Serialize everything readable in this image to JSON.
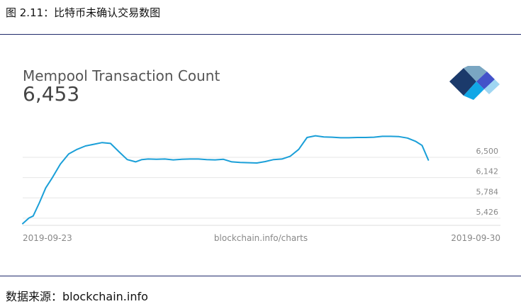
{
  "figure": {
    "caption": "图 2.11：比特币未确认交易数图",
    "source": "数据来源：blockchain.info"
  },
  "chart_data": {
    "type": "line",
    "title": "Mempool Transaction Count",
    "current_value": "6,453",
    "y_ticks": [
      5426,
      5784,
      6142,
      6500
    ],
    "y_tick_labels": [
      "5,426",
      "5,784",
      "6,142",
      "6,500"
    ],
    "ylim": [
      5300,
      7400
    ],
    "x_labels": [
      "2019-09-23",
      "blockchain.info/charts",
      "2019-09-30"
    ],
    "xlim": [
      0,
      100
    ],
    "grid": true,
    "line_color": "#1a9fd8",
    "series": [
      {
        "x": [
          0,
          1.5,
          2.5,
          4,
          5.5,
          7,
          9,
          11,
          13,
          15,
          17,
          19,
          21,
          23,
          25,
          27,
          28.5,
          30,
          32,
          34,
          36,
          38,
          40,
          42,
          44,
          46,
          48,
          50,
          52,
          54,
          56,
          58,
          60,
          62,
          64,
          66,
          68,
          70,
          72,
          74,
          76,
          78,
          80,
          82,
          84,
          86,
          88,
          90,
          92,
          94,
          95.5,
          97
        ],
        "values": [
          5330,
          5430,
          5465,
          5700,
          5960,
          6130,
          6380,
          6560,
          6640,
          6700,
          6730,
          6760,
          6745,
          6600,
          6460,
          6420,
          6460,
          6470,
          6465,
          6470,
          6455,
          6465,
          6470,
          6470,
          6460,
          6455,
          6465,
          6420,
          6410,
          6405,
          6400,
          6425,
          6460,
          6470,
          6520,
          6640,
          6850,
          6880,
          6860,
          6855,
          6845,
          6845,
          6850,
          6850,
          6855,
          6870,
          6870,
          6865,
          6840,
          6780,
          6710,
          6453
        ]
      }
    ]
  }
}
